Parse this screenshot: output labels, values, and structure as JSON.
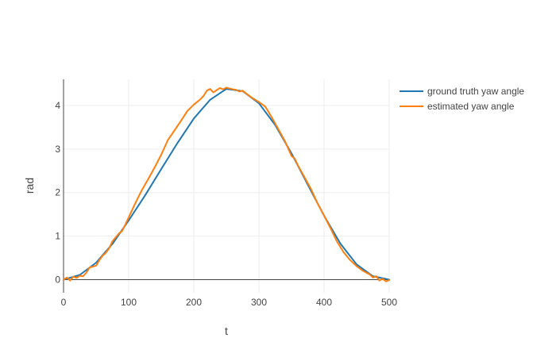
{
  "chart_data": {
    "type": "line",
    "xlabel": "t",
    "ylabel": "rad",
    "xlim": [
      0,
      500
    ],
    "ylim": [
      -0.3,
      4.6
    ],
    "xticks": [
      0,
      100,
      200,
      300,
      400,
      500
    ],
    "xtick_labels": [
      "0",
      "100",
      "200",
      "300",
      "400",
      "500"
    ],
    "yticks": [
      0,
      1,
      2,
      3,
      4
    ],
    "ytick_labels": [
      "0",
      "1",
      "2",
      "3",
      "4"
    ],
    "grid": true,
    "legend_position": "top-right",
    "series": [
      {
        "name": "ground truth yaw angle",
        "color": "#1f77b4",
        "x": [
          0,
          25,
          50,
          75,
          100,
          125,
          150,
          175,
          200,
          225,
          250,
          275,
          300,
          325,
          350,
          375,
          400,
          425,
          450,
          475,
          500
        ],
        "y": [
          0.0,
          0.11,
          0.39,
          0.82,
          1.36,
          1.93,
          2.54,
          3.14,
          3.7,
          4.13,
          4.38,
          4.33,
          4.05,
          3.55,
          2.9,
          2.18,
          1.47,
          0.83,
          0.35,
          0.08,
          0.0
        ]
      },
      {
        "name": "estimated yaw angle",
        "color": "#ff7f0e",
        "x": [
          0,
          5,
          10,
          15,
          20,
          25,
          30,
          35,
          40,
          45,
          50,
          55,
          60,
          65,
          70,
          75,
          80,
          85,
          90,
          95,
          100,
          110,
          120,
          130,
          140,
          150,
          160,
          170,
          180,
          190,
          200,
          210,
          215,
          220,
          225,
          230,
          235,
          240,
          245,
          250,
          255,
          260,
          265,
          270,
          275,
          280,
          290,
          300,
          310,
          320,
          330,
          340,
          350,
          355,
          360,
          370,
          380,
          390,
          400,
          410,
          420,
          430,
          440,
          450,
          460,
          470,
          475,
          480,
          485,
          490,
          495,
          500
        ],
        "y": [
          0.0,
          0.05,
          -0.02,
          0.07,
          0.04,
          0.09,
          0.08,
          0.16,
          0.28,
          0.3,
          0.32,
          0.45,
          0.55,
          0.62,
          0.72,
          0.88,
          0.97,
          1.06,
          1.12,
          1.27,
          1.43,
          1.75,
          2.05,
          2.31,
          2.58,
          2.87,
          3.2,
          3.42,
          3.64,
          3.87,
          4.02,
          4.14,
          4.22,
          4.34,
          4.38,
          4.3,
          4.35,
          4.4,
          4.37,
          4.41,
          4.39,
          4.37,
          4.36,
          4.32,
          4.34,
          4.28,
          4.17,
          4.08,
          3.97,
          3.72,
          3.45,
          3.18,
          2.84,
          2.78,
          2.62,
          2.35,
          2.08,
          1.75,
          1.47,
          1.18,
          0.87,
          0.63,
          0.45,
          0.31,
          0.2,
          0.12,
          0.05,
          0.08,
          -0.02,
          0.02,
          -0.04,
          -0.01
        ]
      }
    ]
  }
}
